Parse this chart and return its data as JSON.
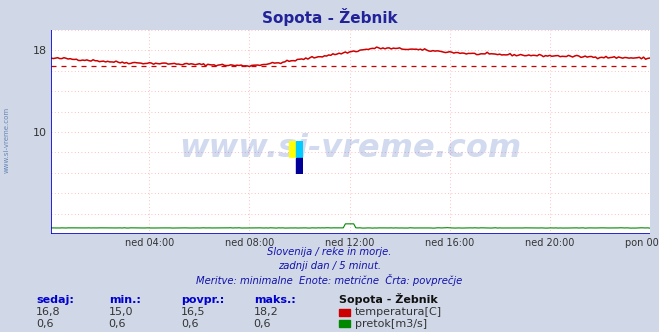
{
  "title": "Sopota - Žebnik",
  "bg_color": "#d0d8e8",
  "plot_bg_color": "#ffffff",
  "outer_bg_color": "#c8d0e0",
  "grid_color": "#ffaaaa",
  "grid_linestyle": "dotted",
  "border_color": "#0000cc",
  "temp_color": "#cc0000",
  "flow_color": "#008800",
  "avg_line_color": "#cc0000",
  "avg_value": 16.5,
  "xlim": [
    0,
    287
  ],
  "ylim": [
    0,
    20
  ],
  "ytick_vals": [
    10,
    18
  ],
  "xtick_labels": [
    "ned 04:00",
    "ned 08:00",
    "ned 12:00",
    "ned 16:00",
    "ned 20:00",
    "pon 00:00"
  ],
  "xtick_positions": [
    47,
    95,
    143,
    191,
    239,
    287
  ],
  "grid_y_positions": [
    2,
    4,
    6,
    8,
    10,
    12,
    14,
    16,
    18,
    20
  ],
  "subtitle_lines": [
    "Slovenija / reke in morje.",
    "zadnji dan / 5 minut.",
    "Meritve: minimalne  Enote: metrične  Črta: povprečje"
  ],
  "footer_color": "#1111aa",
  "watermark_text": "www.si-vreme.com",
  "watermark_color": "#0033aa",
  "watermark_alpha": 0.18,
  "legend_title": "Sopota - Žebnik",
  "legend_items": [
    {
      "label": "temperatura[C]",
      "color": "#cc0000"
    },
    {
      "label": "pretok[m3/s]",
      "color": "#008800"
    }
  ],
  "stats": {
    "headers": [
      "sedaj:",
      "min.:",
      "povpr.:",
      "maks.:"
    ],
    "temp_row": [
      "16,8",
      "15,0",
      "16,5",
      "18,2"
    ],
    "flow_row": [
      "0,6",
      "0,6",
      "0,6",
      "0,6"
    ]
  },
  "side_label": "www.si-vreme.com",
  "side_label_color": "#5577aa",
  "logo_colors": [
    "#ffff00",
    "#00ccff",
    "#ffffff",
    "#000099"
  ]
}
